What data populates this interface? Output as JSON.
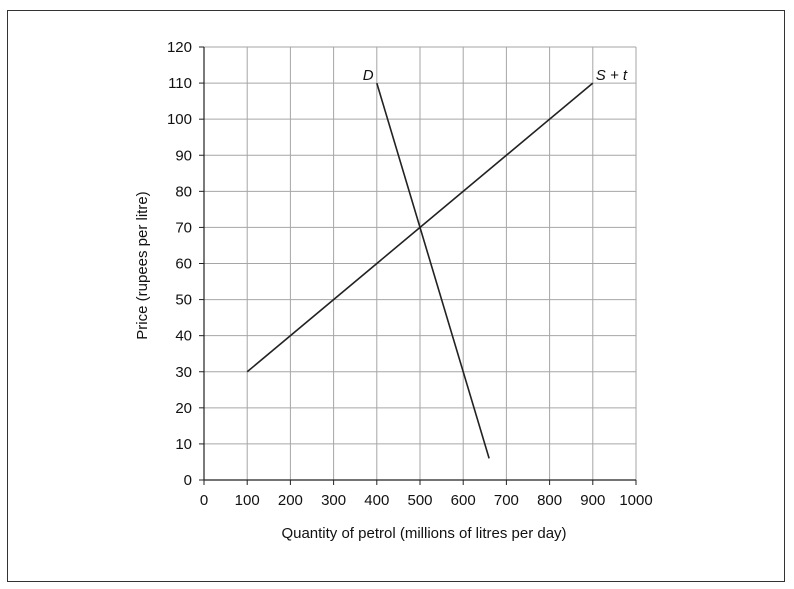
{
  "chart_data": {
    "type": "line",
    "xlabel": "Quantity of petrol (millions of litres per day)",
    "ylabel": "Price (rupees per litre)",
    "xlim": [
      0,
      1000
    ],
    "ylim": [
      0,
      120
    ],
    "x_ticks": [
      0,
      100,
      200,
      300,
      400,
      500,
      600,
      700,
      800,
      900,
      1000
    ],
    "y_ticks": [
      0,
      10,
      20,
      30,
      40,
      50,
      60,
      70,
      80,
      90,
      100,
      110,
      120
    ],
    "grid": true,
    "series": [
      {
        "name": "D",
        "points": [
          [
            400,
            110
          ],
          [
            660,
            6
          ]
        ]
      },
      {
        "name": "S + t",
        "points": [
          [
            100,
            30
          ],
          [
            900,
            110
          ]
        ]
      }
    ]
  },
  "colors": {
    "grid": "#a6a6a6",
    "line": "#222222",
    "axis": "#222222"
  }
}
